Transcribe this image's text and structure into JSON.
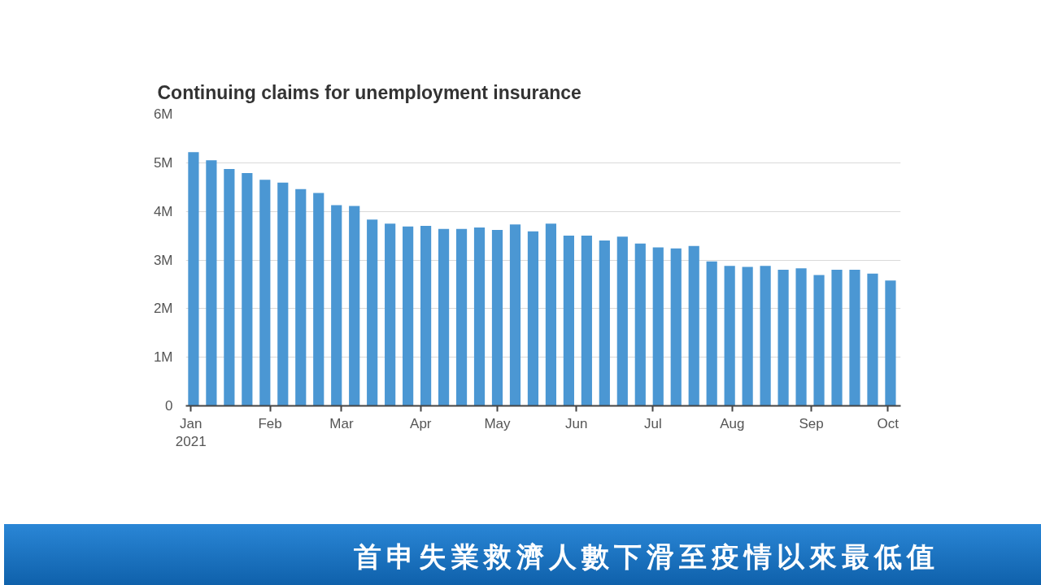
{
  "chart_data": {
    "type": "bar",
    "title": "Continuing claims for unemployment insurance",
    "annotations": [
      "首申失業救濟人數下滑至疫情以來最低值"
    ],
    "x": [
      "2021-01-02",
      "2021-01-09",
      "2021-01-16",
      "2021-01-23",
      "2021-01-30",
      "2021-02-06",
      "2021-02-13",
      "2021-02-20",
      "2021-02-27",
      "2021-03-06",
      "2021-03-13",
      "2021-03-20",
      "2021-03-27",
      "2021-04-03",
      "2021-04-10",
      "2021-04-17",
      "2021-04-24",
      "2021-05-01",
      "2021-05-08",
      "2021-05-15",
      "2021-05-22",
      "2021-05-29",
      "2021-06-05",
      "2021-06-12",
      "2021-06-19",
      "2021-06-26",
      "2021-07-03",
      "2021-07-10",
      "2021-07-17",
      "2021-07-24",
      "2021-07-31",
      "2021-08-07",
      "2021-08-14",
      "2021-08-21",
      "2021-08-28",
      "2021-09-04",
      "2021-09-11",
      "2021-09-18",
      "2021-09-25",
      "2021-10-02"
    ],
    "values": [
      5220000,
      5050000,
      4870000,
      4790000,
      4650000,
      4590000,
      4460000,
      4380000,
      4130000,
      4110000,
      3830000,
      3750000,
      3690000,
      3700000,
      3640000,
      3640000,
      3670000,
      3620000,
      3730000,
      3590000,
      3750000,
      3500000,
      3500000,
      3400000,
      3480000,
      3340000,
      3260000,
      3240000,
      3290000,
      2970000,
      2880000,
      2860000,
      2880000,
      2800000,
      2830000,
      2690000,
      2800000,
      2800000,
      2720000,
      2580000
    ],
    "color": "#4b97d3",
    "xlim": [
      "2020-12-30",
      "2021-10-06"
    ],
    "xticks": [
      {
        "value": "2021-01-01",
        "label": "Jan\n2021"
      },
      {
        "value": "2021-02-01",
        "label": "Feb"
      },
      {
        "value": "2021-03-01",
        "label": "Mar"
      },
      {
        "value": "2021-04-01",
        "label": "Apr"
      },
      {
        "value": "2021-05-01",
        "label": "May"
      },
      {
        "value": "2021-06-01",
        "label": "Jun"
      },
      {
        "value": "2021-07-01",
        "label": "Jul"
      },
      {
        "value": "2021-08-01",
        "label": "Aug"
      },
      {
        "value": "2021-09-01",
        "label": "Sep"
      },
      {
        "value": "2021-10-01",
        "label": "Oct"
      }
    ],
    "ylim": [
      0,
      6000000
    ],
    "yticks": [
      {
        "value": 0,
        "label": "0"
      },
      {
        "value": 1000000,
        "label": "1M"
      },
      {
        "value": 2000000,
        "label": "2M"
      },
      {
        "value": 3000000,
        "label": "3M"
      },
      {
        "value": 4000000,
        "label": "4M"
      },
      {
        "value": 5000000,
        "label": "5M"
      },
      {
        "value": 6000000,
        "label": "6M"
      }
    ],
    "grid": "y"
  }
}
